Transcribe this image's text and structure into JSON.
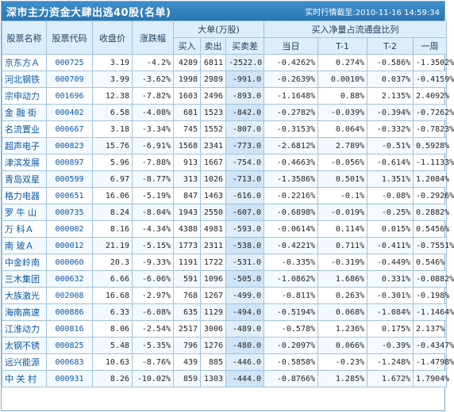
{
  "header": {
    "title": "深市主力资金大肆出逃40股(名单)",
    "realtime": "实时行情截至:2010-11-16  14:59:34"
  },
  "cols": {
    "name": "股票名称",
    "code": "股票代码",
    "close": "收盘价",
    "change": "涨跌幅",
    "big": "大单(万股)",
    "buy": "买入",
    "sell": "卖出",
    "diff": "买卖差",
    "ratio": "买入净量占流通盘比列",
    "today": "当日",
    "t1": "T-1",
    "t2": "T-2",
    "week": "一周"
  },
  "rows": [
    {
      "name": "京东方Ａ",
      "code": "000725",
      "close": "3.19",
      "change": "-4.2%",
      "buy": "4289",
      "sell": "6811",
      "diff": "-2522.0",
      "today": "-0.4262%",
      "t1": "0.274%",
      "t2": "-0.586%",
      "week": "-1.3502%"
    },
    {
      "name": "河北钢铁",
      "code": "000709",
      "close": "3.99",
      "change": "-3.62%",
      "buy": "1998",
      "sell": "2989",
      "diff": "-991.0",
      "today": "-0.2639%",
      "t1": "0.0010%",
      "t2": "0.037%",
      "week": "-0.4159%"
    },
    {
      "name": "宗申动力",
      "code": "001696",
      "close": "12.38",
      "change": "-7.82%",
      "buy": "1603",
      "sell": "2496",
      "diff": "-893.0",
      "today": "-1.1648%",
      "t1": "0.88%",
      "t2": "2.135%",
      "week": "2.4092%"
    },
    {
      "name": "金 融 街",
      "code": "000402",
      "close": "6.58",
      "change": "-4.08%",
      "buy": "681",
      "sell": "1523",
      "diff": "-842.0",
      "today": "-0.2782%",
      "t1": "-0.039%",
      "t2": "-0.394%",
      "week": "-0.7262%"
    },
    {
      "name": "名流置业",
      "code": "000667",
      "close": "3.18",
      "change": "-3.34%",
      "buy": "745",
      "sell": "1552",
      "diff": "-807.0",
      "today": "-0.3153%",
      "t1": "0.064%",
      "t2": "-0.332%",
      "week": "-0.7823%"
    },
    {
      "name": "超声电子",
      "code": "000823",
      "close": "15.76",
      "change": "-6.91%",
      "buy": "1568",
      "sell": "2341",
      "diff": "-773.0",
      "today": "-2.6812%",
      "t1": "2.789%",
      "t2": "-0.51%",
      "week": "0.5928%"
    },
    {
      "name": "津滨发展",
      "code": "000897",
      "close": "5.96",
      "change": "-7.88%",
      "buy": "913",
      "sell": "1667",
      "diff": "-754.0",
      "today": "-0.4663%",
      "t1": "-0.056%",
      "t2": "-0.614%",
      "week": "-1.1133%"
    },
    {
      "name": "青岛双星",
      "code": "000599",
      "close": "6.97",
      "change": "-8.77%",
      "buy": "313",
      "sell": "1026",
      "diff": "-713.0",
      "today": "-1.3586%",
      "t1": "0.501%",
      "t2": "1.351%",
      "week": "1.2084%"
    },
    {
      "name": "格力电器",
      "code": "000651",
      "close": "16.06",
      "change": "-5.19%",
      "buy": "847",
      "sell": "1463",
      "diff": "-616.0",
      "today": "-0.2216%",
      "t1": "-0.1%",
      "t2": "-0.08%",
      "week": "-0.2926%"
    },
    {
      "name": "罗 牛 山",
      "code": "000735",
      "close": "8.24",
      "change": "-8.04%",
      "buy": "1943",
      "sell": "2550",
      "diff": "-607.0",
      "today": "-0.6898%",
      "t1": "-0.019%",
      "t2": "-0.25%",
      "week": "0.2882%"
    },
    {
      "name": "万 科Ａ",
      "code": "000002",
      "close": "8.16",
      "change": "-4.34%",
      "buy": "4388",
      "sell": "4981",
      "diff": "-593.0",
      "today": "-0.0614%",
      "t1": "0.114%",
      "t2": "0.015%",
      "week": "0.5456%"
    },
    {
      "name": "南 玻Ａ",
      "code": "000012",
      "close": "21.19",
      "change": "-5.15%",
      "buy": "1773",
      "sell": "2311",
      "diff": "-538.0",
      "today": "-0.4221%",
      "t1": "0.711%",
      "t2": "-0.411%",
      "week": "-0.7551%"
    },
    {
      "name": "中金岭南",
      "code": "000060",
      "close": "20.3",
      "change": "-9.33%",
      "buy": "1191",
      "sell": "1722",
      "diff": "-531.0",
      "today": "-0.335%",
      "t1": "-0.319%",
      "t2": "-0.449%",
      "week": "0.546%"
    },
    {
      "name": "三木集团",
      "code": "000632",
      "close": "6.66",
      "change": "-6.06%",
      "buy": "591",
      "sell": "1096",
      "diff": "-505.0",
      "today": "-1.0862%",
      "t1": "1.686%",
      "t2": "0.331%",
      "week": "-0.0882%"
    },
    {
      "name": "大族激光",
      "code": "002008",
      "close": "16.68",
      "change": "-2.97%",
      "buy": "768",
      "sell": "1267",
      "diff": "-499.0",
      "today": "-0.811%",
      "t1": "0.263%",
      "t2": "-0.301%",
      "week": "-0.198%"
    },
    {
      "name": "海南高速",
      "code": "000886",
      "close": "6.33",
      "change": "-6.08%",
      "buy": "635",
      "sell": "1129",
      "diff": "-494.0",
      "today": "-0.5194%",
      "t1": "0.068%",
      "t2": "-1.084%",
      "week": "-1.1464%"
    },
    {
      "name": "江淮动力",
      "code": "000816",
      "close": "8.06",
      "change": "-2.54%",
      "buy": "2517",
      "sell": "3006",
      "diff": "-489.0",
      "today": "-0.578%",
      "t1": "1.236%",
      "t2": "0.175%",
      "week": "2.137%"
    },
    {
      "name": "太钢不锈",
      "code": "000825",
      "close": "5.48",
      "change": "-5.35%",
      "buy": "796",
      "sell": "1276",
      "diff": "-480.0",
      "today": "-0.2097%",
      "t1": "0.066%",
      "t2": "-0.39%",
      "week": "-0.4347%"
    },
    {
      "name": "远兴能源",
      "code": "000683",
      "close": "10.63",
      "change": "-8.76%",
      "buy": "439",
      "sell": "885",
      "diff": "-446.0",
      "today": "-0.5858%",
      "t1": "-0.23%",
      "t2": "-1.248%",
      "week": "-1.4798%"
    },
    {
      "name": "中 关 村",
      "code": "000931",
      "close": "8.26",
      "change": "-10.02%",
      "buy": "859",
      "sell": "1303",
      "diff": "-444.0",
      "today": "-0.8766%",
      "t1": "1.285%",
      "t2": "1.672%",
      "week": "1.7904%"
    }
  ]
}
